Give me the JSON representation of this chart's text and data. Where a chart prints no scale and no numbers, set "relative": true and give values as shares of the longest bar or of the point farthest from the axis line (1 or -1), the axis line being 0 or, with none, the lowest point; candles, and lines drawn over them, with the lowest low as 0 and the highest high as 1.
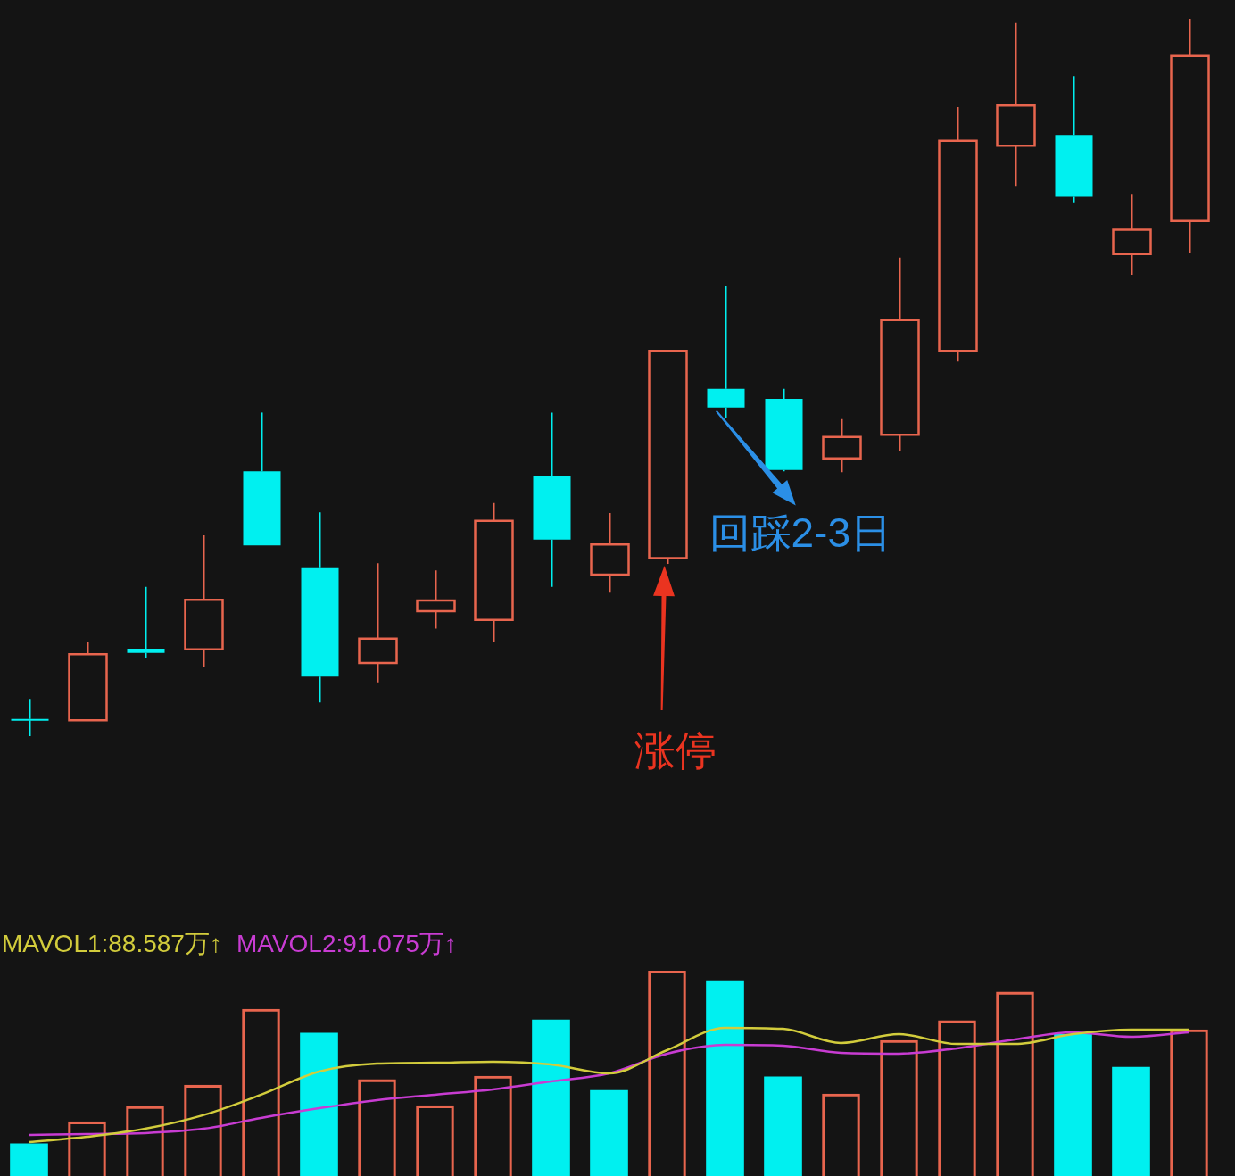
{
  "chart_data": [
    {
      "type": "candlestick",
      "relative": true,
      "categories": [
        null,
        null,
        null,
        null,
        null,
        null,
        null,
        null,
        null,
        null,
        null,
        null,
        null,
        null,
        null,
        null,
        null,
        null,
        null,
        null,
        null
      ],
      "ohlc": [
        [
          0.024,
          0.052,
          0,
          0.022
        ],
        [
          0.022,
          0.131,
          0.022,
          0.114
        ],
        [
          0.122,
          0.208,
          0.109,
          0.116
        ],
        [
          0.121,
          0.28,
          0.097,
          0.19
        ],
        [
          0.369,
          0.451,
          0.266,
          0.266
        ],
        [
          0.234,
          0.312,
          0.047,
          0.083
        ],
        [
          0.102,
          0.241,
          0.075,
          0.136
        ],
        [
          0.174,
          0.231,
          0.15,
          0.189
        ],
        [
          0.162,
          0.325,
          0.131,
          0.3
        ],
        [
          0.362,
          0.451,
          0.208,
          0.274
        ],
        [
          0.225,
          0.311,
          0.2,
          0.267
        ],
        [
          0.248,
          0.537,
          0.24,
          0.537
        ],
        [
          0.484,
          0.628,
          0.444,
          0.458
        ],
        [
          0.47,
          0.484,
          0.369,
          0.371
        ],
        [
          0.387,
          0.442,
          0.368,
          0.417
        ],
        [
          0.42,
          0.667,
          0.398,
          0.58
        ],
        [
          0.537,
          0.877,
          0.522,
          0.83
        ],
        [
          0.823,
          0.994,
          0.766,
          0.879
        ],
        [
          0.838,
          0.92,
          0.744,
          0.752
        ],
        [
          0.672,
          0.756,
          0.643,
          0.706
        ],
        [
          0.718,
          1,
          0.674,
          0.948
        ]
      ],
      "colors": [
        "#00f0f0",
        "#e8654e",
        "#00f0f0",
        "#e8654e",
        "#00f0f0",
        "#00f0f0",
        "#e8654e",
        "#e8654e",
        "#e8654e",
        "#00f0f0",
        "#e8654e",
        "#e8654e",
        "#00f0f0",
        "#00f0f0",
        "#e8654e",
        "#e8654e",
        "#e8654e",
        "#e8654e",
        "#00f0f0",
        "#e8654e",
        "#e8654e"
      ],
      "annotations": [
        "涨停",
        "回踩2-3日"
      ]
    },
    {
      "type": "bar",
      "relative": true,
      "legend": "top left",
      "categories": [
        null,
        null,
        null,
        null,
        null,
        null,
        null,
        null,
        null,
        null,
        null,
        null,
        null,
        null,
        null,
        null,
        null,
        null,
        null,
        null,
        null
      ],
      "series": [
        {
          "type": "bar",
          "values": [
            0.157,
            0.265,
            0.339,
            0.443,
            0.813,
            0.696,
            0.47,
            0.343,
            0.487,
            0.761,
            0.417,
            1,
            0.952,
            0.483,
            0.4,
            0.661,
            0.757,
            0.896,
            0.691,
            0.53,
            0.713
          ],
          "colors": [
            "#00f0f0",
            "#e8654e",
            "#e8654e",
            "#e8654e",
            "#e8654e",
            "#00f0f0",
            "#e8654e",
            "#e8654e",
            "#e8654e",
            "#00f0f0",
            "#00f0f0",
            "#e8654e",
            "#00f0f0",
            "#00f0f0",
            "#e8654e",
            "#e8654e",
            "#e8654e",
            "#e8654e",
            "#00f0f0",
            "#00f0f0",
            "#e8654e"
          ]
        },
        {
          "type": "line",
          "name": "MAVOL1:88.587万↑",
          "color": "#d2cc3c",
          "values": [
            0.165,
            0.191,
            0.23,
            0.296,
            0.396,
            0.509,
            0.548,
            0.552,
            0.557,
            0.543,
            0.5,
            0.613,
            0.722,
            0.717,
            0.648,
            0.691,
            0.643,
            0.643,
            0.691,
            0.713,
            0.713
          ]
        },
        {
          "type": "line",
          "name": "MAVOL2:91.075万↑",
          "color": "#c83cd2",
          "values": [
            0.2,
            0.204,
            0.209,
            0.23,
            0.283,
            0.33,
            0.37,
            0.396,
            0.422,
            0.461,
            0.5,
            0.596,
            0.639,
            0.635,
            0.6,
            0.596,
            0.622,
            0.665,
            0.7,
            0.678,
            0.7
          ]
        }
      ]
    }
  ]
}
